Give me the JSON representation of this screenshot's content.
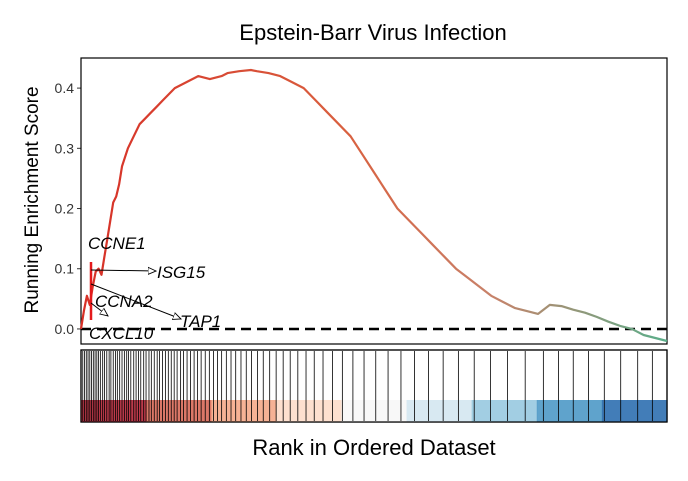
{
  "chart_data": {
    "type": "line",
    "title": "Epstein-Barr Virus Infection",
    "ylabel": "Running Enrichment Score",
    "xlabel": "Rank in Ordered Dataset",
    "ylim": [
      -0.025,
      0.45
    ],
    "xlim": [
      0,
      100
    ],
    "yticks": [
      0.0,
      0.1,
      0.2,
      0.3,
      0.4
    ],
    "ytick_labels": [
      "0.0",
      "0.1",
      "0.2",
      "0.3",
      "0.4"
    ],
    "baseline": 0,
    "series": [
      {
        "x": [
          0,
          0.5,
          1,
          1.5,
          2,
          2.5,
          3,
          3.5,
          4,
          4.5,
          5,
          5.5,
          6,
          6.5,
          7,
          8,
          9,
          10,
          11,
          12,
          13,
          14,
          15,
          16,
          18,
          20,
          22,
          24,
          25,
          27,
          29,
          30,
          32,
          34,
          36,
          38,
          40,
          42,
          44,
          46,
          48,
          50,
          52,
          54,
          56,
          58,
          60,
          62,
          64,
          66,
          68,
          70,
          72,
          74,
          76,
          78,
          80,
          82,
          84,
          86,
          88,
          90,
          92,
          94,
          96,
          98,
          100
        ],
        "y": [
          0.0,
          0.03,
          0.055,
          0.04,
          0.07,
          0.095,
          0.1,
          0.09,
          0.12,
          0.15,
          0.18,
          0.21,
          0.22,
          0.24,
          0.27,
          0.3,
          0.32,
          0.34,
          0.35,
          0.36,
          0.37,
          0.38,
          0.39,
          0.4,
          0.41,
          0.42,
          0.415,
          0.42,
          0.425,
          0.428,
          0.43,
          0.428,
          0.425,
          0.42,
          0.41,
          0.4,
          0.38,
          0.36,
          0.34,
          0.32,
          0.29,
          0.26,
          0.23,
          0.2,
          0.18,
          0.16,
          0.14,
          0.12,
          0.1,
          0.085,
          0.07,
          0.055,
          0.045,
          0.035,
          0.03,
          0.025,
          0.04,
          0.038,
          0.032,
          0.027,
          0.02,
          0.012,
          0.005,
          0.0,
          -0.01,
          -0.015,
          -0.02
        ]
      }
    ],
    "gene_labels": [
      "CCNE1",
      "ISG15",
      "CCNA2",
      "TAP1",
      "CXCL10"
    ],
    "rank_bar_colors": [
      "#b2182b",
      "#d6604d",
      "#f4a582",
      "#fddbc7",
      "#f7f7f7",
      "#d1e5f0",
      "#92c5de",
      "#4393c3",
      "#2166ac"
    ],
    "line_colors": {
      "start": "#d73027",
      "mid": "#c8826a",
      "end": "#5aae8a"
    },
    "hits": [
      0.3,
      0.6,
      0.9,
      1.2,
      1.5,
      1.8,
      2.1,
      2.4,
      2.7,
      3.0,
      3.3,
      3.7,
      4.0,
      4.4,
      4.8,
      5.1,
      5.5,
      5.9,
      6.2,
      6.6,
      7.0,
      7.4,
      7.8,
      8.1,
      8.5,
      9.0,
      9.4,
      9.8,
      10.2,
      10.7,
      11.1,
      11.6,
      12.0,
      12.5,
      13.0,
      13.4,
      13.9,
      14.4,
      14.9,
      15.4,
      15.9,
      16.4,
      17.0,
      17.5,
      18.1,
      18.7,
      19.3,
      19.9,
      20.5,
      21.2,
      21.9,
      22.6,
      23.3,
      24.0,
      24.8,
      25.6,
      26.4,
      27.3,
      28.2,
      29.1,
      30.1,
      31.1,
      32.2,
      33.3,
      34.5,
      35.7,
      37.0,
      38.4,
      39.8,
      41.3,
      42.9,
      44.6,
      46.4,
      48.3,
      50.3,
      52.4,
      54.6,
      56.9,
      59.3,
      61.8,
      64.4,
      67.1,
      69.9,
      72.8,
      75.8,
      78.9,
      81.5,
      84.0,
      86.6,
      89.3,
      92.1,
      95.0,
      97.5
    ]
  }
}
